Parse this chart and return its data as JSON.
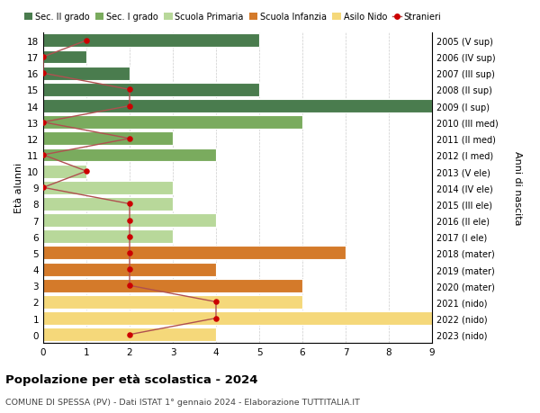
{
  "ages": [
    18,
    17,
    16,
    15,
    14,
    13,
    12,
    11,
    10,
    9,
    8,
    7,
    6,
    5,
    4,
    3,
    2,
    1,
    0
  ],
  "right_labels": [
    "2005 (V sup)",
    "2006 (IV sup)",
    "2007 (III sup)",
    "2008 (II sup)",
    "2009 (I sup)",
    "2010 (III med)",
    "2011 (II med)",
    "2012 (I med)",
    "2013 (V ele)",
    "2014 (IV ele)",
    "2015 (III ele)",
    "2016 (II ele)",
    "2017 (I ele)",
    "2018 (mater)",
    "2019 (mater)",
    "2020 (mater)",
    "2021 (nido)",
    "2022 (nido)",
    "2023 (nido)"
  ],
  "bar_values": [
    5,
    1,
    2,
    5,
    9,
    6,
    3,
    4,
    1,
    3,
    3,
    4,
    3,
    7,
    4,
    6,
    6,
    9,
    4
  ],
  "stranieri_values": [
    1,
    0,
    0,
    2,
    2,
    0,
    2,
    0,
    1,
    0,
    2,
    2,
    2,
    2,
    2,
    2,
    4,
    4,
    2
  ],
  "bar_colors": [
    "#4a7c4e",
    "#4a7c4e",
    "#4a7c4e",
    "#4a7c4e",
    "#4a7c4e",
    "#7aab5e",
    "#7aab5e",
    "#7aab5e",
    "#b8d89a",
    "#b8d89a",
    "#b8d89a",
    "#b8d89a",
    "#b8d89a",
    "#d47a2a",
    "#d47a2a",
    "#d47a2a",
    "#f5d87a",
    "#f5d87a",
    "#f5d87a"
  ],
  "legend_labels": [
    "Sec. II grado",
    "Sec. I grado",
    "Scuola Primaria",
    "Scuola Infanzia",
    "Asilo Nido",
    "Stranieri"
  ],
  "legend_colors": [
    "#4a7c4e",
    "#7aab5e",
    "#b8d89a",
    "#d47a2a",
    "#f5d87a",
    "#cc0000"
  ],
  "stranieri_color": "#cc0000",
  "stranieri_line_color": "#b05050",
  "ylabel": "Età alunni",
  "right_ylabel": "Anni di nascita",
  "title": "Popolazione per età scolastica - 2024",
  "subtitle": "COMUNE DI SPESSA (PV) - Dati ISTAT 1° gennaio 2024 - Elaborazione TUTTITALIA.IT",
  "xlim": [
    0,
    9
  ],
  "background_color": "#ffffff",
  "grid_color": "#cccccc"
}
